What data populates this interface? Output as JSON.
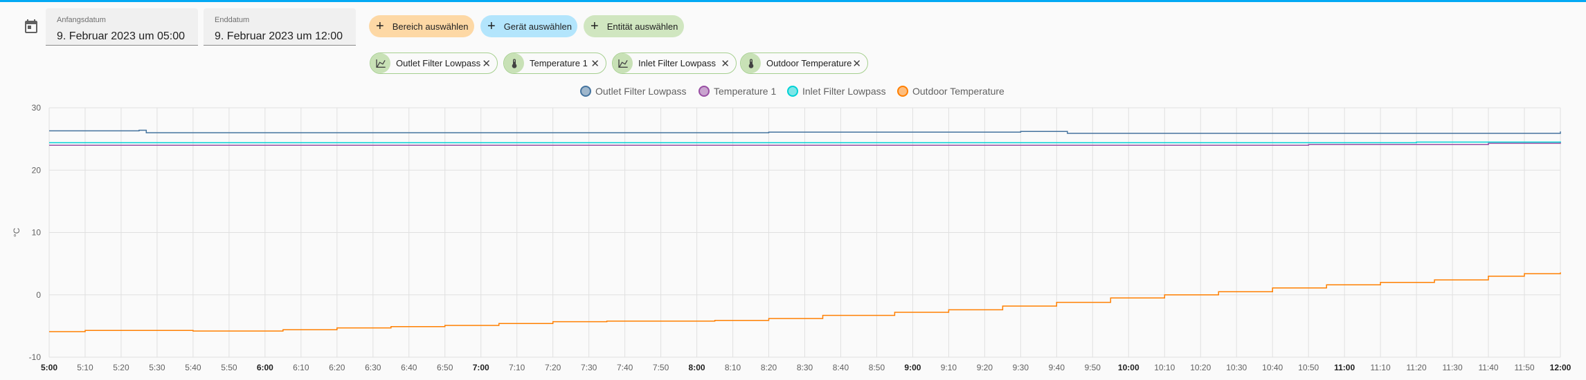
{
  "date_range": {
    "start_label": "Anfangsdatum",
    "start_value": "9. Februar 2023 um 05:00",
    "end_label": "Enddatum",
    "end_value": "9. Februar 2023 um 12:00"
  },
  "pickers": {
    "area": "Bereich auswählen",
    "device": "Gerät auswählen",
    "entity": "Entität auswählen"
  },
  "chips": [
    {
      "label": "Outlet Filter Lowpass",
      "icon": "chart-line-icon"
    },
    {
      "label": "Temperature 1",
      "icon": "thermometer-icon"
    },
    {
      "label": "Inlet Filter Lowpass",
      "icon": "chart-line-icon"
    },
    {
      "label": "Outdoor Temperature",
      "icon": "thermometer-icon"
    }
  ],
  "colors": {
    "accent": "#03a9f4",
    "outlet": "#44739e",
    "temp1": "#984ea3",
    "inlet": "#00d2d5",
    "outdoor": "#ff7f00"
  },
  "chart_data": {
    "type": "line",
    "title": "",
    "xlabel": "",
    "ylabel": "°C",
    "ylim": [
      -10,
      30
    ],
    "yticks": [
      "-10",
      "0",
      "10",
      "20",
      "30"
    ],
    "xticks": [
      "5:00",
      "5:10",
      "5:20",
      "5:30",
      "5:40",
      "5:50",
      "6:00",
      "6:10",
      "6:20",
      "6:30",
      "6:40",
      "6:50",
      "7:00",
      "7:10",
      "7:20",
      "7:30",
      "7:40",
      "7:50",
      "8:00",
      "8:10",
      "8:20",
      "8:30",
      "8:40",
      "8:50",
      "9:00",
      "9:10",
      "9:20",
      "9:30",
      "9:40",
      "9:50",
      "10:00",
      "10:10",
      "10:20",
      "10:30",
      "10:40",
      "10:50",
      "11:00",
      "11:10",
      "11:20",
      "11:30",
      "11:40",
      "11:50",
      "12:00"
    ],
    "bold_xticks": [
      "5:00",
      "6:00",
      "7:00",
      "8:00",
      "9:00",
      "10:00",
      "11:00",
      "12:00"
    ],
    "grid": true,
    "legend_position": "top-center",
    "x_minutes_range": [
      0,
      420
    ],
    "series": [
      {
        "name": "Outlet Filter Lowpass",
        "points": [
          [
            0,
            26.3
          ],
          [
            20,
            26.3
          ],
          [
            25,
            26.4
          ],
          [
            27,
            26.0
          ],
          [
            100,
            26.0
          ],
          [
            200,
            26.1
          ],
          [
            270,
            26.2
          ],
          [
            280,
            26.2
          ],
          [
            283,
            25.9
          ],
          [
            330,
            25.9
          ],
          [
            420,
            26.2
          ]
        ]
      },
      {
        "name": "Temperature 1",
        "points": [
          [
            0,
            24.0
          ],
          [
            50,
            24.0
          ],
          [
            100,
            24.0
          ],
          [
            150,
            24.0
          ],
          [
            200,
            24.0
          ],
          [
            250,
            24.0
          ],
          [
            300,
            24.0
          ],
          [
            350,
            24.1
          ],
          [
            400,
            24.3
          ],
          [
            420,
            24.5
          ]
        ]
      },
      {
        "name": "Inlet Filter Lowpass",
        "points": [
          [
            0,
            24.4
          ],
          [
            100,
            24.4
          ],
          [
            200,
            24.4
          ],
          [
            300,
            24.4
          ],
          [
            380,
            24.5
          ],
          [
            420,
            24.6
          ]
        ]
      },
      {
        "name": "Outdoor Temperature",
        "points": [
          [
            0,
            -5.9
          ],
          [
            10,
            -5.7
          ],
          [
            30,
            -5.7
          ],
          [
            40,
            -5.8
          ],
          [
            55,
            -5.8
          ],
          [
            65,
            -5.6
          ],
          [
            80,
            -5.3
          ],
          [
            95,
            -5.1
          ],
          [
            110,
            -4.9
          ],
          [
            125,
            -4.6
          ],
          [
            140,
            -4.3
          ],
          [
            155,
            -4.2
          ],
          [
            170,
            -4.2
          ],
          [
            185,
            -4.1
          ],
          [
            200,
            -3.8
          ],
          [
            215,
            -3.3
          ],
          [
            235,
            -2.8
          ],
          [
            250,
            -2.4
          ],
          [
            265,
            -1.8
          ],
          [
            280,
            -1.2
          ],
          [
            295,
            -0.5
          ],
          [
            310,
            0.0
          ],
          [
            325,
            0.5
          ],
          [
            340,
            1.1
          ],
          [
            355,
            1.6
          ],
          [
            370,
            2.0
          ],
          [
            385,
            2.4
          ],
          [
            400,
            3.0
          ],
          [
            410,
            3.4
          ],
          [
            420,
            3.6
          ]
        ]
      }
    ]
  }
}
